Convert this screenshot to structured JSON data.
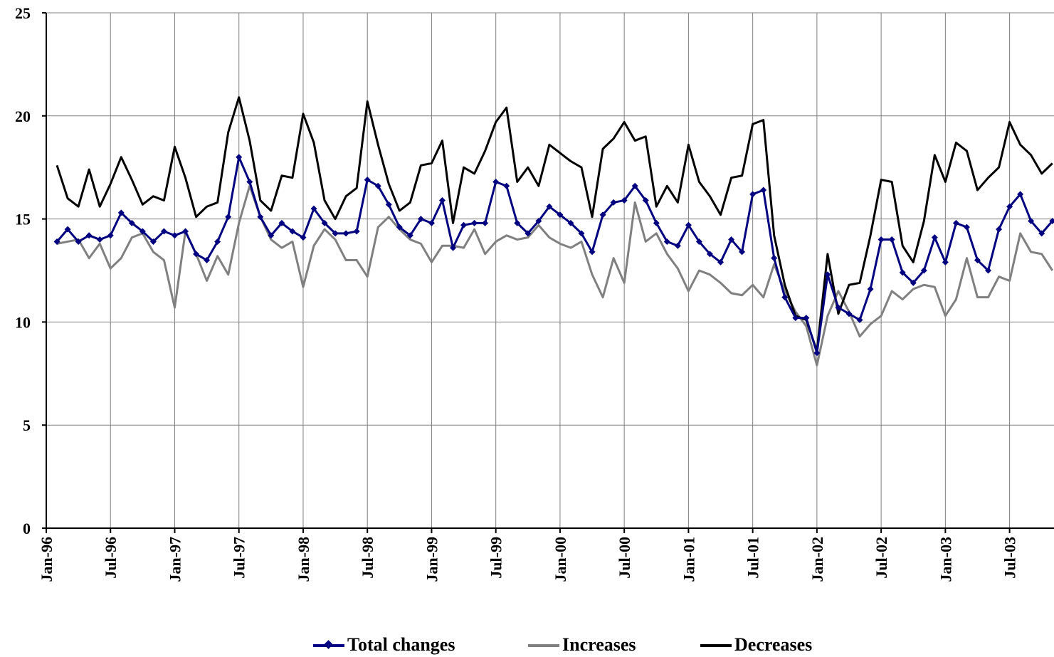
{
  "chart_data": {
    "type": "line",
    "title": "",
    "xlabel": "",
    "ylabel": "",
    "ylim": [
      0,
      25
    ],
    "yticks": [
      0,
      5,
      10,
      15,
      20,
      25
    ],
    "x_tick_labels": [
      "Jan-96",
      "Jul-96",
      "Jan-97",
      "Jul-97",
      "Jan-98",
      "Jul-98",
      "Jan-99",
      "Jul-99",
      "Jan-00",
      "Jul-00",
      "Jan-01",
      "Jul-01",
      "Jan-02",
      "Jul-02",
      "Jan-03",
      "Jul-03"
    ],
    "x_start": "Feb-96",
    "x_end": "Nov-03",
    "grid": "vertical and horizontal gridlines",
    "legend_position": "bottom",
    "series": [
      {
        "name": "Total changes",
        "color": "#000080",
        "marker": "diamond",
        "values": [
          13.9,
          14.5,
          13.9,
          14.2,
          14.0,
          14.2,
          15.3,
          14.8,
          14.4,
          13.9,
          14.4,
          14.2,
          14.4,
          13.3,
          13.0,
          13.9,
          15.1,
          18.0,
          16.8,
          15.1,
          14.2,
          14.8,
          14.4,
          14.1,
          15.5,
          14.8,
          14.3,
          14.3,
          14.4,
          16.9,
          16.6,
          15.7,
          14.6,
          14.2,
          15.0,
          14.8,
          15.9,
          13.6,
          14.7,
          14.8,
          14.8,
          16.8,
          16.6,
          14.8,
          14.3,
          14.9,
          15.6,
          15.2,
          14.8,
          14.3,
          13.4,
          15.2,
          15.8,
          15.9,
          16.6,
          15.9,
          14.8,
          13.9,
          13.7,
          14.7,
          13.9,
          13.3,
          12.9,
          14.0,
          13.4,
          16.2,
          16.4,
          13.1,
          11.2,
          10.2,
          10.2,
          8.5,
          12.3,
          10.7,
          10.4,
          10.1,
          11.6,
          14.0,
          14.0,
          12.4,
          11.9,
          12.5,
          14.1,
          12.9,
          14.8,
          14.6,
          13.0,
          12.5,
          14.5,
          15.6,
          16.2,
          14.9,
          14.3,
          14.9
        ]
      },
      {
        "name": "Increases",
        "color": "#808080",
        "values": [
          13.8,
          13.9,
          14.0,
          13.1,
          13.8,
          12.6,
          13.1,
          14.1,
          14.3,
          13.4,
          13.0,
          10.7,
          14.4,
          13.3,
          12.0,
          13.2,
          12.3,
          14.8,
          16.6,
          15.1,
          14.0,
          13.6,
          13.9,
          11.7,
          13.7,
          14.5,
          14.0,
          13.0,
          13.0,
          12.2,
          14.6,
          15.1,
          14.5,
          14.0,
          13.8,
          12.9,
          13.7,
          13.7,
          13.6,
          14.5,
          13.3,
          13.9,
          14.2,
          14.0,
          14.1,
          14.7,
          14.1,
          13.8,
          13.6,
          13.9,
          12.3,
          11.2,
          13.1,
          11.9,
          15.8,
          13.9,
          14.3,
          13.3,
          12.6,
          11.5,
          12.5,
          12.3,
          11.9,
          11.4,
          11.3,
          11.8,
          11.2,
          12.8,
          11.5,
          10.5,
          9.8,
          7.9,
          10.3,
          11.5,
          10.5,
          9.3,
          9.9,
          10.3,
          11.5,
          11.1,
          11.6,
          11.8,
          11.7,
          10.3,
          11.1,
          13.1,
          11.2,
          11.2,
          12.2,
          12.0,
          14.3,
          13.4,
          13.3,
          12.5
        ]
      },
      {
        "name": "Decreases",
        "color": "#000000",
        "values": [
          17.6,
          16.0,
          15.6,
          17.4,
          15.6,
          16.7,
          18.0,
          16.9,
          15.7,
          16.1,
          15.9,
          18.5,
          17.0,
          15.1,
          15.6,
          15.8,
          19.2,
          20.9,
          18.8,
          15.9,
          15.4,
          17.1,
          17.0,
          20.1,
          18.7,
          15.9,
          15.0,
          16.1,
          16.5,
          20.7,
          18.6,
          16.7,
          15.4,
          15.8,
          17.6,
          17.7,
          18.8,
          14.8,
          17.5,
          17.2,
          18.3,
          19.7,
          20.4,
          16.8,
          17.5,
          16.6,
          18.6,
          18.2,
          17.8,
          17.5,
          15.1,
          18.4,
          18.9,
          19.7,
          18.8,
          19.0,
          15.6,
          16.6,
          15.8,
          18.6,
          16.8,
          16.1,
          15.2,
          17.0,
          17.1,
          19.6,
          19.8,
          14.2,
          11.8,
          10.3,
          10.1,
          8.6,
          13.3,
          10.4,
          11.8,
          11.9,
          14.2,
          16.9,
          16.8,
          13.7,
          12.9,
          14.9,
          18.1,
          16.8,
          18.7,
          18.3,
          16.4,
          17.0,
          17.5,
          19.7,
          18.6,
          18.1,
          17.2,
          17.7
        ]
      }
    ]
  }
}
